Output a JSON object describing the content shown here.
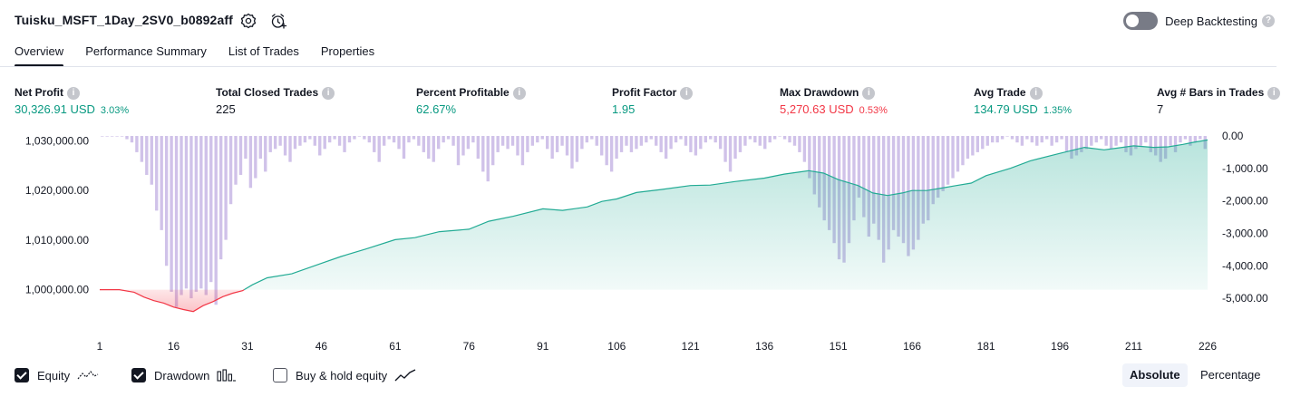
{
  "header": {
    "strategy_name": "Tuisku_MSFT_1Day_2SV0_b0892aff",
    "icons": [
      "settings-gear-icon",
      "alert-clock-icon"
    ],
    "deep_backtesting_label": "Deep Backtesting",
    "deep_backtesting_on": false
  },
  "tabs": [
    {
      "label": "Overview",
      "active": true
    },
    {
      "label": "Performance Summary",
      "active": false
    },
    {
      "label": "List of Trades",
      "active": false
    },
    {
      "label": "Properties",
      "active": false
    }
  ],
  "stats": [
    {
      "label": "Net Profit",
      "value": "30,326.91 USD",
      "pct": "3.03%",
      "tone": "green"
    },
    {
      "label": "Total Closed Trades",
      "value": "225",
      "pct": "",
      "tone": "plain"
    },
    {
      "label": "Percent Profitable",
      "value": "62.67%",
      "pct": "",
      "tone": "green"
    },
    {
      "label": "Profit Factor",
      "value": "1.95",
      "pct": "",
      "tone": "green"
    },
    {
      "label": "Max Drawdown",
      "value": "5,270.63 USD",
      "pct": "0.53%",
      "tone": "red"
    },
    {
      "label": "Avg Trade",
      "value": "134.79 USD",
      "pct": "1.35%",
      "tone": "green"
    },
    {
      "label": "Avg # Bars in Trades",
      "value": "7",
      "pct": "",
      "tone": "plain"
    }
  ],
  "chart_data": {
    "type": "area",
    "left_axis_ticks": [
      "1,030,000.00",
      "1,020,000.00",
      "1,010,000.00",
      "1,000,000.00"
    ],
    "left_ylim": [
      995000,
      1031000
    ],
    "right_axis_ticks": [
      "0.00",
      "-1,000.00",
      "-2,000.00",
      "-3,000.00",
      "-4,000.00",
      "-5,000.00"
    ],
    "right_ylim": [
      -5500,
      0
    ],
    "x_ticks": [
      "1",
      "16",
      "31",
      "46",
      "61",
      "76",
      "91",
      "106",
      "121",
      "136",
      "151",
      "166",
      "181",
      "196",
      "211",
      "226"
    ],
    "xlim": [
      1,
      226
    ],
    "baseline": 1000000,
    "series": [
      {
        "name": "Equity",
        "color_up": "#22ab94",
        "color_down": "#f23645",
        "points": [
          [
            1,
            1000000
          ],
          [
            5,
            1000000
          ],
          [
            8,
            999500
          ],
          [
            10,
            998500
          ],
          [
            12,
            997800
          ],
          [
            14,
            997300
          ],
          [
            16,
            996500
          ],
          [
            18,
            996000
          ],
          [
            20,
            995600
          ],
          [
            22,
            996800
          ],
          [
            24,
            997600
          ],
          [
            26,
            998600
          ],
          [
            28,
            999300
          ],
          [
            30,
            999800
          ],
          [
            32,
            1001000
          ],
          [
            35,
            1002400
          ],
          [
            40,
            1003200
          ],
          [
            46,
            1005300
          ],
          [
            50,
            1006700
          ],
          [
            55,
            1008200
          ],
          [
            61,
            1010100
          ],
          [
            65,
            1010500
          ],
          [
            70,
            1011700
          ],
          [
            76,
            1012200
          ],
          [
            80,
            1013800
          ],
          [
            85,
            1014800
          ],
          [
            91,
            1016300
          ],
          [
            95,
            1016000
          ],
          [
            100,
            1016700
          ],
          [
            103,
            1017800
          ],
          [
            106,
            1018300
          ],
          [
            110,
            1019600
          ],
          [
            115,
            1020200
          ],
          [
            121,
            1021000
          ],
          [
            125,
            1021100
          ],
          [
            130,
            1021800
          ],
          [
            136,
            1022500
          ],
          [
            140,
            1023300
          ],
          [
            145,
            1024000
          ],
          [
            148,
            1023500
          ],
          [
            151,
            1022200
          ],
          [
            155,
            1021000
          ],
          [
            158,
            1019500
          ],
          [
            161,
            1019000
          ],
          [
            164,
            1019500
          ],
          [
            166,
            1020000
          ],
          [
            169,
            1020000
          ],
          [
            172,
            1020500
          ],
          [
            175,
            1021000
          ],
          [
            178,
            1021500
          ],
          [
            181,
            1023000
          ],
          [
            186,
            1024500
          ],
          [
            190,
            1026000
          ],
          [
            196,
            1027500
          ],
          [
            201,
            1028700
          ],
          [
            205,
            1028200
          ],
          [
            208,
            1028600
          ],
          [
            211,
            1029000
          ],
          [
            215,
            1028700
          ],
          [
            218,
            1028800
          ],
          [
            221,
            1029300
          ],
          [
            223,
            1029700
          ],
          [
            226,
            1030200
          ]
        ]
      },
      {
        "name": "Drawdown",
        "color": "#b39ddb",
        "values": [
          0,
          0,
          0,
          0,
          0,
          -100,
          -200,
          -500,
          -800,
          -1200,
          -1500,
          -2300,
          -2900,
          -4000,
          -4800,
          -5270,
          -4900,
          -4700,
          -5000,
          -4800,
          -4700,
          -4900,
          -4500,
          -5200,
          -3800,
          -3200,
          -2100,
          -1500,
          -1200,
          -700,
          -1600,
          -1300,
          -700,
          -1100,
          -500,
          -400,
          -300,
          -600,
          -800,
          -400,
          -300,
          -200,
          -100,
          -300,
          -600,
          -400,
          -200,
          -100,
          -300,
          -500,
          -200,
          -100,
          0,
          -100,
          -200,
          -500,
          -800,
          -300,
          -100,
          -200,
          -400,
          -700,
          -200,
          -100,
          -300,
          -500,
          -700,
          -800,
          -400,
          -200,
          -100,
          -300,
          -900,
          -600,
          -400,
          -200,
          -700,
          -1100,
          -1400,
          -900,
          -500,
          -300,
          -400,
          -300,
          -600,
          -900,
          -500,
          -300,
          -200,
          -100,
          -400,
          -700,
          -500,
          -300,
          -600,
          -1000,
          -800,
          -400,
          -200,
          -100,
          -300,
          -600,
          -900,
          -1100,
          -700,
          -500,
          -300,
          -500,
          -400,
          -300,
          -200,
          -100,
          -300,
          -500,
          -700,
          -400,
          -200,
          -100,
          -300,
          -500,
          -600,
          -400,
          -200,
          -100,
          -200,
          -400,
          -800,
          -1100,
          -700,
          -500,
          -300,
          -100,
          -200,
          -300,
          -400,
          -200,
          -100,
          0,
          -100,
          -200,
          -300,
          -500,
          -800,
          -1300,
          -1800,
          -2200,
          -2600,
          -2900,
          -3300,
          -3800,
          -3900,
          -3300,
          -2600,
          -1900,
          -2500,
          -3100,
          -2700,
          -3200,
          -3900,
          -3500,
          -2900,
          -3100,
          -3300,
          -3700,
          -3500,
          -3200,
          -2700,
          -2600,
          -2100,
          -1900,
          -1700,
          -1500,
          -1300,
          -1100,
          -900,
          -700,
          -600,
          -500,
          -400,
          -300,
          -200,
          -200,
          -100,
          0,
          -100,
          -200,
          -300,
          -100,
          -200,
          -300,
          -200,
          -100,
          -300,
          -200,
          -100,
          -500,
          -700,
          -600,
          -500,
          -400,
          -300,
          -200,
          -100,
          -300,
          -400,
          -300,
          -200,
          -500,
          -600,
          -400,
          -300,
          -200,
          -500,
          -600,
          -800,
          -700,
          -300,
          -500,
          -200,
          -100,
          -300,
          -200,
          -100,
          -400
        ]
      }
    ]
  },
  "footer": {
    "equity_label": "Equity",
    "equity_checked": true,
    "drawdown_label": "Drawdown",
    "drawdown_checked": true,
    "buyhold_label": "Buy & hold equity",
    "buyhold_checked": false,
    "absolute_label": "Absolute",
    "percentage_label": "Percentage",
    "mode": "Absolute"
  }
}
